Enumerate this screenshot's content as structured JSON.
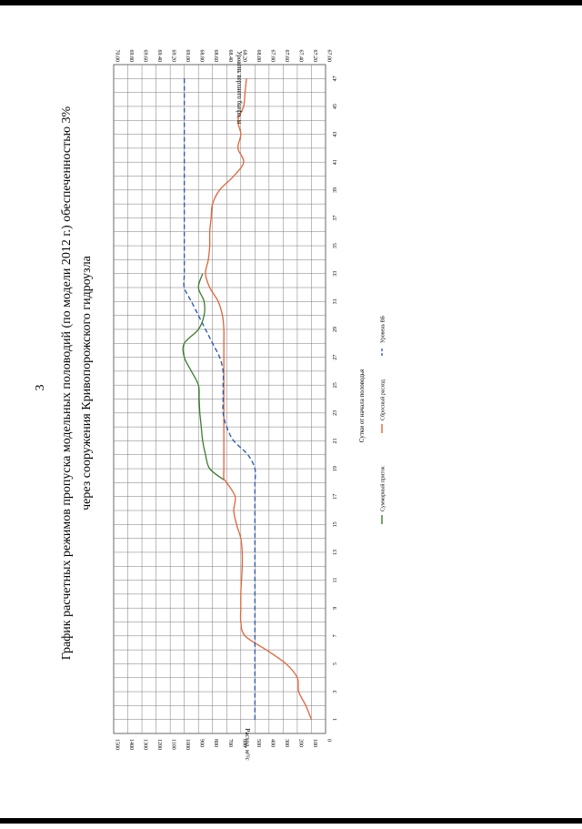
{
  "page_number": "3",
  "title_line1": "График расчетных режимов пропуска модельных половодий (по модели 2012 г.) обеспеченностью 3%",
  "title_line2": "через сооружения Кривопорожского гидроузла",
  "chart_data": {
    "type": "line",
    "orientation": "rotated-90-cw",
    "xlabel": "Сутки от начала половодья",
    "ylabel_left": "Расход, м³/с",
    "ylabel_right": "Уровень верхнего бьефа, м",
    "x_ticks": [
      1,
      3,
      5,
      7,
      9,
      11,
      13,
      15,
      17,
      19,
      21,
      23,
      25,
      27,
      29,
      31,
      33,
      35,
      37,
      39,
      41,
      43,
      45,
      47
    ],
    "xlim": [
      0,
      48
    ],
    "ylim_left": [
      0,
      1500
    ],
    "y_ticks_left": [
      0,
      100,
      200,
      300,
      400,
      500,
      600,
      700,
      800,
      900,
      1000,
      1100,
      1200,
      1300,
      1400,
      1500
    ],
    "ylim_right": [
      67.0,
      70.0
    ],
    "y_ticks_right": [
      "67.00",
      "67.20",
      "67.40",
      "67.60",
      "67.80",
      "68.00",
      "68.20",
      "68.40",
      "68.60",
      "68.80",
      "69.00",
      "69.20",
      "69.40",
      "69.60",
      "69.80",
      "70.00"
    ],
    "grid": true,
    "legend_position": "bottom",
    "series": [
      {
        "name": "Суммарный приток",
        "color": "#3a7d2c",
        "axis": "left",
        "style": "solid",
        "x": [
          18.2,
          19,
          20,
          21,
          22,
          23,
          24,
          25,
          26,
          27,
          28,
          29,
          30,
          31,
          32,
          33
        ],
        "y": [
          720,
          820,
          850,
          870,
          880,
          890,
          895,
          900,
          950,
          1000,
          1000,
          900,
          860,
          860,
          900,
          870
        ]
      },
      {
        "name": "Сбросный расход",
        "color": "#e0643a",
        "axis": "left",
        "style": "solid",
        "x": [
          1,
          2,
          3,
          4,
          5,
          6,
          7,
          8,
          9,
          10,
          11,
          12,
          13,
          14,
          15,
          16,
          17,
          18,
          18.3,
          19,
          20,
          21,
          22,
          23,
          24,
          25,
          26,
          27,
          28,
          29,
          30,
          31,
          32,
          33,
          34,
          35,
          36,
          37,
          38,
          39,
          40,
          41,
          42,
          43,
          44,
          45,
          46,
          47
        ],
        "y": [
          100,
          140,
          190,
          200,
          280,
          420,
          570,
          600,
          600,
          600,
          595,
          590,
          590,
          600,
          630,
          650,
          640,
          700,
          720,
          720,
          720,
          720,
          720,
          720,
          720,
          720,
          720,
          720,
          720,
          720,
          730,
          760,
          820,
          850,
          830,
          820,
          820,
          810,
          800,
          750,
          650,
          580,
          620,
          600,
          620,
          580,
          570,
          560
        ]
      },
      {
        "name": "Уровень ВБ",
        "color": "#2f5fb0",
        "axis": "right",
        "style": "dashed",
        "x": [
          1,
          3,
          5,
          7,
          9,
          11,
          13,
          15,
          17,
          18,
          19,
          20,
          21,
          22,
          23,
          24,
          25,
          26,
          27,
          28,
          29,
          30,
          31,
          32,
          33,
          35,
          37,
          39,
          41,
          43,
          45,
          47
        ],
        "y": [
          68.0,
          68.0,
          68.0,
          68.0,
          68.0,
          68.0,
          68.0,
          68.0,
          68.0,
          68.0,
          68.0,
          68.1,
          68.3,
          68.4,
          68.45,
          68.45,
          68.45,
          68.45,
          68.5,
          68.6,
          68.7,
          68.8,
          68.9,
          69.0,
          69.0,
          69.0,
          69.0,
          69.0,
          69.0,
          69.0,
          69.0,
          69.0
        ]
      }
    ]
  }
}
